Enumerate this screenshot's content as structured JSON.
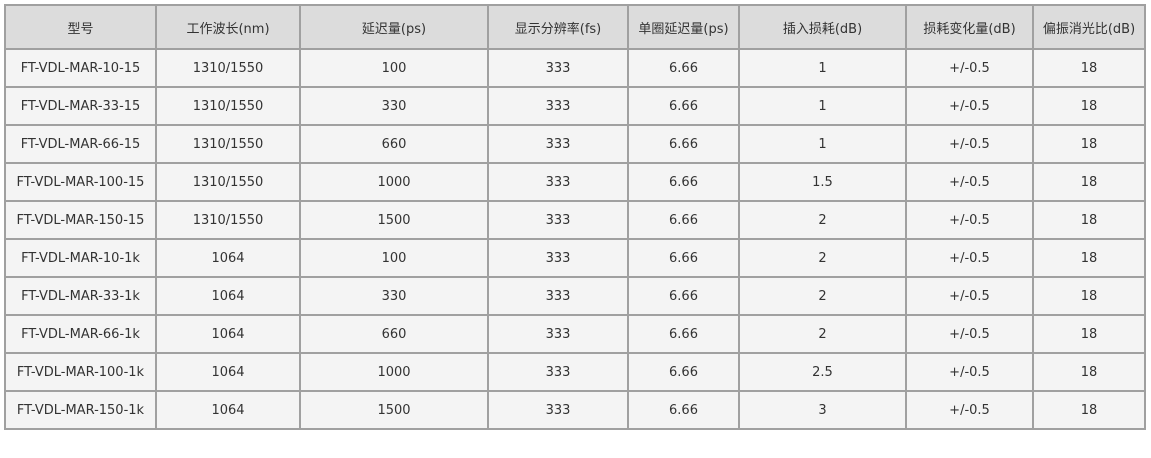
{
  "table": {
    "header": [
      "型号",
      "工作波长(nm)",
      "延迟量(ps)",
      "显示分辨率(fs)",
      "单圈延迟量(ps)",
      "插入损耗(dB)",
      "损耗变化量(dB)",
      "偏振消光比(dB)"
    ],
    "rows": [
      [
        "FT-VDL-MAR-10-15",
        "1310/1550",
        "100",
        "333",
        "6.66",
        "1",
        "+/-0.5",
        "18"
      ],
      [
        "FT-VDL-MAR-33-15",
        "1310/1550",
        "330",
        "333",
        "6.66",
        "1",
        "+/-0.5",
        "18"
      ],
      [
        "FT-VDL-MAR-66-15",
        "1310/1550",
        "660",
        "333",
        "6.66",
        "1",
        "+/-0.5",
        "18"
      ],
      [
        "FT-VDL-MAR-100-15",
        "1310/1550",
        "1000",
        "333",
        "6.66",
        "1.5",
        "+/-0.5",
        "18"
      ],
      [
        "FT-VDL-MAR-150-15",
        "1310/1550",
        "1500",
        "333",
        "6.66",
        "2",
        "+/-0.5",
        "18"
      ],
      [
        "FT-VDL-MAR-10-1k",
        "1064",
        "100",
        "333",
        "6.66",
        "2",
        "+/-0.5",
        "18"
      ],
      [
        "FT-VDL-MAR-33-1k",
        "1064",
        "330",
        "333",
        "6.66",
        "2",
        "+/-0.5",
        "18"
      ],
      [
        "FT-VDL-MAR-66-1k",
        "1064",
        "660",
        "333",
        "6.66",
        "2",
        "+/-0.5",
        "18"
      ],
      [
        "FT-VDL-MAR-100-1k",
        "1064",
        "1000",
        "333",
        "6.66",
        "2.5",
        "+/-0.5",
        "18"
      ],
      [
        "FT-VDL-MAR-150-1k",
        "1064",
        "1500",
        "333",
        "6.66",
        "3",
        "+/-0.5",
        "18"
      ]
    ]
  }
}
